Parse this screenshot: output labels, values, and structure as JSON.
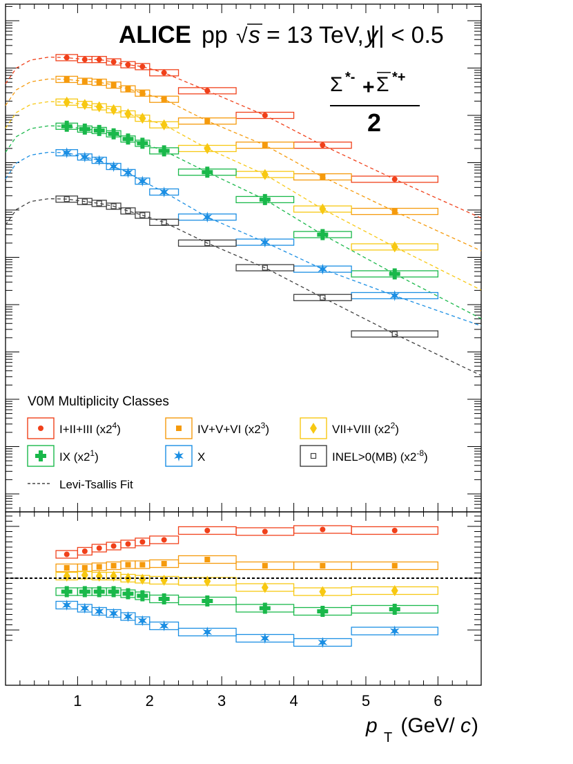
{
  "chart_data": {
    "type": "scatter",
    "header": {
      "experiment": "ALICE",
      "system": "pp",
      "sqrt": "√",
      "s_symbol": "s",
      "energy": "= 13 TeV, |",
      "y_symbol": "y",
      "rapidity": "| < 0.5"
    },
    "particle": {
      "sigma1": "Σ",
      "sup1": "*-",
      "plus": "+",
      "sigma2": "Σ",
      "sup2": "*+",
      "denominator": "2"
    },
    "legend_title": "V0M Multiplicity Classes",
    "fit_label": "Levi-Tsallis Fit",
    "xlabel": "p",
    "xlabel_sub": "T",
    "xlabel_unit_open": " (GeV/",
    "xlabel_unit_c": "c",
    "xlabel_unit_close": ")",
    "xlim": [
      0,
      6.6
    ],
    "x_ticks": [
      "1",
      "2",
      "3",
      "4",
      "5",
      "6"
    ],
    "bin_centers": [
      0.85,
      1.1,
      1.3,
      1.5,
      1.7,
      1.9,
      2.2,
      2.8,
      3.6,
      4.4,
      5.4
    ],
    "bin_edges": [
      [
        0.7,
        1.0
      ],
      [
        1.0,
        1.2
      ],
      [
        1.2,
        1.4
      ],
      [
        1.4,
        1.6
      ],
      [
        1.6,
        1.8
      ],
      [
        1.8,
        2.0
      ],
      [
        2.0,
        2.4
      ],
      [
        2.4,
        3.2
      ],
      [
        3.2,
        4.0
      ],
      [
        4.0,
        4.8
      ],
      [
        4.8,
        6.0
      ]
    ],
    "top_panel": {
      "log_scale": true,
      "yrange_decades": [
        -8.0,
        0.4
      ]
    },
    "ratio_panel": {
      "reference_line": 1.0,
      "ylim": [
        0.45,
        1.7
      ]
    },
    "series": [
      {
        "name": "I+II+III",
        "label_prefix": "I+II+III (x2",
        "label_exp": "4",
        "label_suffix": ")",
        "marker": "circle",
        "color": "#f0401a",
        "values": [
          -0.78,
          -0.82,
          -0.82,
          -0.87,
          -0.93,
          -0.97,
          -1.1,
          -1.48,
          -2.0,
          -2.63,
          -3.35
        ],
        "ratio": [
          1.23,
          1.26,
          1.29,
          1.31,
          1.33,
          1.35,
          1.37,
          1.46,
          1.45,
          1.47,
          1.46
        ]
      },
      {
        "name": "IV+V+VI",
        "label_prefix": "IV+V+VI (x2",
        "label_exp": "3",
        "label_suffix": ")",
        "marker": "square",
        "color": "#f59a0c",
        "values": [
          -1.24,
          -1.28,
          -1.3,
          -1.36,
          -1.44,
          -1.53,
          -1.66,
          -2.12,
          -2.63,
          -3.3,
          -4.03
        ],
        "ratio": [
          1.1,
          1.1,
          1.11,
          1.12,
          1.13,
          1.13,
          1.14,
          1.18,
          1.12,
          1.12,
          1.12
        ]
      },
      {
        "name": "VII+VIII",
        "label_prefix": "VII+VIII (x2",
        "label_exp": "2",
        "label_suffix": ")",
        "marker": "diamond",
        "color": "#f7c812",
        "values": [
          -1.72,
          -1.77,
          -1.82,
          -1.88,
          -1.97,
          -2.06,
          -2.2,
          -2.7,
          -3.25,
          -3.98,
          -4.78
        ],
        "ratio": [
          1.02,
          1.03,
          1.02,
          1.02,
          1.0,
          0.99,
          0.98,
          0.97,
          0.91,
          0.87,
          0.88
        ]
      },
      {
        "name": "IX",
        "label_prefix": "IX (x2",
        "label_exp": "1",
        "label_suffix": ")",
        "marker": "cross",
        "color": "#19b84a",
        "values": [
          -2.23,
          -2.29,
          -2.32,
          -2.39,
          -2.5,
          -2.59,
          -2.75,
          -3.2,
          -3.78,
          -4.52,
          -5.35
        ],
        "ratio": [
          0.87,
          0.87,
          0.87,
          0.87,
          0.85,
          0.83,
          0.8,
          0.78,
          0.71,
          0.68,
          0.7
        ]
      },
      {
        "name": "X",
        "label_prefix": "X",
        "label_exp": "",
        "label_suffix": "",
        "marker": "star",
        "color": "#1a8ee3",
        "values": [
          -2.79,
          -2.88,
          -2.95,
          -3.08,
          -3.21,
          -3.39,
          -3.62,
          -4.15,
          -4.68,
          -5.25,
          -5.81
        ],
        "ratio": [
          0.74,
          0.71,
          0.68,
          0.66,
          0.63,
          0.59,
          0.54,
          0.48,
          0.42,
          0.38,
          0.49
        ]
      },
      {
        "name": "INEL>0(MB)",
        "label_prefix": "INEL>0(MB) (x2",
        "label_exp": "-8",
        "label_suffix": ")",
        "marker": "open-square",
        "color": "#3d3d3d",
        "values": [
          -3.77,
          -3.82,
          -3.86,
          -3.92,
          -4.02,
          -4.11,
          -4.26,
          -4.7,
          -5.22,
          -5.85,
          -6.62
        ],
        "ratio": []
      }
    ]
  }
}
